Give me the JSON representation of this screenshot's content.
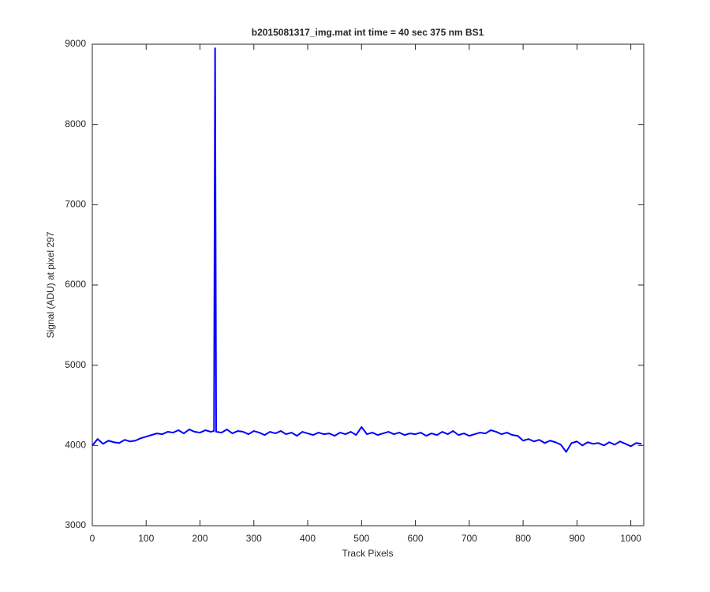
{
  "chart_data": {
    "type": "line",
    "title": "b2015081317_img.mat int time = 40 sec  375 nm BS1",
    "xlabel": "Track Pixels",
    "ylabel": "Signal (ADU) at pixel 297",
    "color": "#0000ff",
    "x": [
      0,
      10,
      20,
      30,
      40,
      50,
      60,
      70,
      80,
      90,
      100,
      110,
      120,
      130,
      140,
      150,
      160,
      170,
      180,
      190,
      200,
      210,
      220,
      226,
      228,
      230,
      240,
      250,
      260,
      270,
      280,
      290,
      300,
      310,
      320,
      330,
      340,
      350,
      360,
      370,
      380,
      390,
      400,
      410,
      420,
      430,
      440,
      450,
      460,
      470,
      480,
      490,
      500,
      510,
      520,
      530,
      540,
      550,
      560,
      570,
      580,
      590,
      600,
      610,
      620,
      630,
      640,
      650,
      660,
      670,
      680,
      690,
      700,
      710,
      720,
      730,
      740,
      750,
      760,
      770,
      780,
      790,
      800,
      810,
      820,
      830,
      840,
      850,
      860,
      870,
      880,
      890,
      900,
      910,
      920,
      930,
      940,
      950,
      960,
      970,
      980,
      990,
      1000,
      1010,
      1020
    ],
    "values": [
      4000,
      4080,
      4020,
      4060,
      4040,
      4030,
      4070,
      4050,
      4060,
      4090,
      4110,
      4130,
      4150,
      4140,
      4170,
      4160,
      4190,
      4150,
      4200,
      4170,
      4160,
      4190,
      4170,
      4180,
      8950,
      4170,
      4160,
      4200,
      4150,
      4180,
      4170,
      4140,
      4180,
      4160,
      4130,
      4170,
      4150,
      4180,
      4140,
      4160,
      4120,
      4170,
      4150,
      4130,
      4160,
      4140,
      4150,
      4120,
      4160,
      4140,
      4170,
      4130,
      4230,
      4140,
      4160,
      4130,
      4150,
      4170,
      4140,
      4160,
      4130,
      4150,
      4140,
      4160,
      4120,
      4150,
      4130,
      4170,
      4140,
      4180,
      4130,
      4150,
      4120,
      4140,
      4160,
      4150,
      4190,
      4170,
      4140,
      4160,
      4130,
      4120,
      4060,
      4080,
      4050,
      4070,
      4030,
      4060,
      4040,
      4010,
      3920,
      4030,
      4050,
      4000,
      4040,
      4020,
      4030,
      4000,
      4040,
      4010,
      4050,
      4020,
      3990,
      4030,
      4020
    ],
    "xlim": [
      0,
      1024
    ],
    "ylim": [
      3000,
      9000
    ],
    "xticks": [
      0,
      100,
      200,
      300,
      400,
      500,
      600,
      700,
      800,
      900,
      1000
    ],
    "yticks": [
      3000,
      4000,
      5000,
      6000,
      7000,
      8000,
      9000
    ]
  }
}
